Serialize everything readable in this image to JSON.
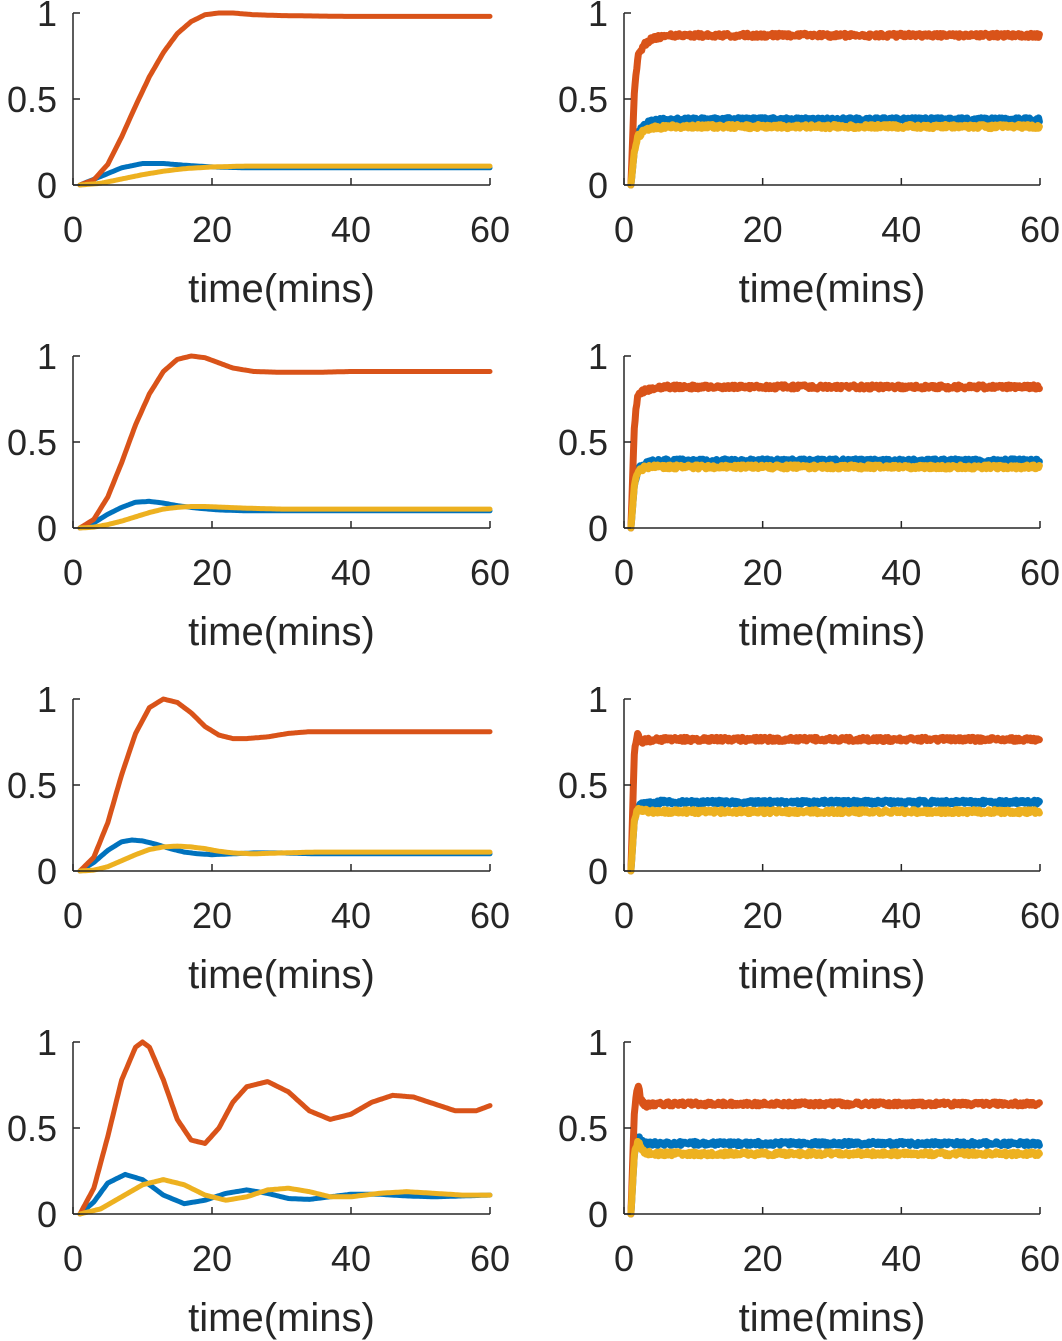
{
  "colors": {
    "series_a": "#0072BD",
    "series_b": "#D95319",
    "series_c": "#EDB120",
    "axis": "#262626"
  },
  "chart_data": [
    {
      "type": "line",
      "panel": "row1-left",
      "xlabel": "time(mins)",
      "ylabel": "",
      "xlim": [
        0,
        60
      ],
      "ylim": [
        0,
        1
      ],
      "xticks": [
        0,
        20,
        40,
        60
      ],
      "yticks": [
        0,
        0.5,
        1
      ],
      "yticklabels": [
        "0",
        "0.5",
        "1"
      ],
      "grid": false,
      "series": [
        {
          "color": "#0072BD",
          "noise": false,
          "x": [
            1,
            4,
            7,
            10,
            13,
            16,
            20,
            25,
            30,
            40,
            50,
            60
          ],
          "y": [
            0,
            0.05,
            0.1,
            0.125,
            0.125,
            0.115,
            0.105,
            0.1,
            0.1,
            0.1,
            0.1,
            0.1
          ]
        },
        {
          "color": "#D95319",
          "noise": false,
          "x": [
            1,
            3,
            5,
            7,
            9,
            11,
            13,
            15,
            17,
            19,
            21,
            23,
            26,
            30,
            40,
            50,
            60
          ],
          "y": [
            0,
            0.03,
            0.12,
            0.28,
            0.46,
            0.63,
            0.77,
            0.88,
            0.95,
            0.99,
            1.0,
            1.0,
            0.99,
            0.985,
            0.98,
            0.98,
            0.98
          ]
        },
        {
          "color": "#EDB120",
          "noise": false,
          "x": [
            1,
            4,
            7,
            10,
            13,
            16,
            20,
            25,
            30,
            40,
            50,
            60
          ],
          "y": [
            0,
            0.01,
            0.035,
            0.06,
            0.08,
            0.095,
            0.105,
            0.11,
            0.11,
            0.11,
            0.11,
            0.11
          ]
        }
      ]
    },
    {
      "type": "line",
      "panel": "row1-right",
      "xlabel": "time(mins)",
      "ylabel": "",
      "xlim": [
        0,
        60
      ],
      "ylim": [
        0,
        1
      ],
      "xticks": [
        0,
        20,
        40,
        60
      ],
      "yticks": [
        0,
        0.5,
        1
      ],
      "yticklabels": [
        "0",
        "0.5",
        "1"
      ],
      "grid": false,
      "series": [
        {
          "color": "#0072BD",
          "noise": true,
          "x": [
            1,
            1.5,
            2,
            3,
            4,
            5,
            7,
            10,
            20,
            30,
            40,
            50,
            60
          ],
          "y": [
            0,
            0.2,
            0.3,
            0.35,
            0.37,
            0.375,
            0.38,
            0.38,
            0.38,
            0.38,
            0.38,
            0.38,
            0.38
          ]
        },
        {
          "color": "#D95319",
          "noise": true,
          "x": [
            1,
            1.5,
            2,
            3,
            4,
            5,
            7,
            10,
            20,
            30,
            40,
            50,
            60
          ],
          "y": [
            0,
            0.55,
            0.75,
            0.82,
            0.85,
            0.86,
            0.87,
            0.87,
            0.87,
            0.87,
            0.87,
            0.87,
            0.87
          ]
        },
        {
          "color": "#EDB120",
          "noise": true,
          "x": [
            1,
            1.5,
            2,
            3,
            4,
            5,
            7,
            10,
            20,
            30,
            40,
            50,
            60
          ],
          "y": [
            0,
            0.2,
            0.28,
            0.32,
            0.33,
            0.335,
            0.34,
            0.34,
            0.34,
            0.34,
            0.34,
            0.34,
            0.34
          ]
        }
      ]
    },
    {
      "type": "line",
      "panel": "row2-left",
      "xlabel": "time(mins)",
      "ylabel": "",
      "xlim": [
        0,
        60
      ],
      "ylim": [
        0,
        1
      ],
      "xticks": [
        0,
        20,
        40,
        60
      ],
      "yticks": [
        0,
        0.5,
        1
      ],
      "yticklabels": [
        "0",
        "0.5",
        "1"
      ],
      "grid": false,
      "series": [
        {
          "color": "#0072BD",
          "noise": false,
          "x": [
            1,
            3,
            5,
            7,
            9,
            11,
            13,
            15,
            18,
            21,
            25,
            30,
            40,
            50,
            60
          ],
          "y": [
            0,
            0.03,
            0.08,
            0.12,
            0.15,
            0.155,
            0.145,
            0.13,
            0.115,
            0.105,
            0.1,
            0.1,
            0.1,
            0.1,
            0.1
          ]
        },
        {
          "color": "#D95319",
          "noise": false,
          "x": [
            1,
            3,
            5,
            7,
            9,
            11,
            13,
            15,
            17,
            19,
            21,
            23,
            26,
            30,
            35,
            40,
            50,
            60
          ],
          "y": [
            0,
            0.05,
            0.18,
            0.38,
            0.6,
            0.78,
            0.91,
            0.98,
            1.0,
            0.99,
            0.96,
            0.93,
            0.91,
            0.905,
            0.905,
            0.91,
            0.91,
            0.91
          ]
        },
        {
          "color": "#EDB120",
          "noise": false,
          "x": [
            1,
            3,
            5,
            7,
            9,
            11,
            13,
            15,
            17,
            19,
            22,
            25,
            30,
            40,
            50,
            60
          ],
          "y": [
            0,
            0.005,
            0.02,
            0.04,
            0.065,
            0.09,
            0.11,
            0.12,
            0.125,
            0.125,
            0.12,
            0.115,
            0.11,
            0.11,
            0.11,
            0.11
          ]
        }
      ]
    },
    {
      "type": "line",
      "panel": "row2-right",
      "xlabel": "time(mins)",
      "ylabel": "",
      "xlim": [
        0,
        60
      ],
      "ylim": [
        0,
        1
      ],
      "xticks": [
        0,
        20,
        40,
        60
      ],
      "yticks": [
        0,
        0.5,
        1
      ],
      "yticklabels": [
        "0",
        "0.5",
        "1"
      ],
      "grid": false,
      "series": [
        {
          "color": "#0072BD",
          "noise": true,
          "x": [
            1,
            1.5,
            2,
            3,
            4,
            5,
            7,
            10,
            20,
            30,
            40,
            50,
            60
          ],
          "y": [
            0,
            0.25,
            0.34,
            0.37,
            0.385,
            0.39,
            0.39,
            0.39,
            0.39,
            0.39,
            0.39,
            0.39,
            0.39
          ]
        },
        {
          "color": "#D95319",
          "noise": true,
          "x": [
            1,
            1.5,
            2,
            3,
            4,
            5,
            7,
            10,
            20,
            30,
            40,
            50,
            60
          ],
          "y": [
            0,
            0.6,
            0.78,
            0.8,
            0.81,
            0.82,
            0.82,
            0.82,
            0.82,
            0.82,
            0.82,
            0.82,
            0.82
          ]
        },
        {
          "color": "#EDB120",
          "noise": true,
          "x": [
            1,
            1.5,
            2,
            3,
            4,
            5,
            7,
            10,
            20,
            30,
            40,
            50,
            60
          ],
          "y": [
            0,
            0.25,
            0.33,
            0.35,
            0.355,
            0.355,
            0.355,
            0.355,
            0.355,
            0.355,
            0.355,
            0.355,
            0.355
          ]
        }
      ]
    },
    {
      "type": "line",
      "panel": "row3-left",
      "xlabel": "time(mins)",
      "ylabel": "",
      "xlim": [
        0,
        60
      ],
      "ylim": [
        0,
        1
      ],
      "xticks": [
        0,
        20,
        40,
        60
      ],
      "yticks": [
        0,
        0.5,
        1
      ],
      "yticklabels": [
        "0",
        "0.5",
        "1"
      ],
      "grid": false,
      "series": [
        {
          "color": "#0072BD",
          "noise": false,
          "x": [
            1,
            3,
            5,
            7,
            8.5,
            10,
            12,
            14,
            16,
            18,
            20,
            23,
            26,
            30,
            35,
            40,
            50,
            60
          ],
          "y": [
            0,
            0.05,
            0.12,
            0.17,
            0.18,
            0.175,
            0.155,
            0.13,
            0.11,
            0.1,
            0.095,
            0.1,
            0.105,
            0.105,
            0.1,
            0.1,
            0.1,
            0.1
          ]
        },
        {
          "color": "#D95319",
          "noise": false,
          "x": [
            1,
            3,
            5,
            7,
            9,
            11,
            13,
            15,
            17,
            19,
            21,
            23,
            25,
            28,
            31,
            34,
            37,
            40,
            45,
            50,
            60
          ],
          "y": [
            0,
            0.08,
            0.28,
            0.56,
            0.8,
            0.95,
            1.0,
            0.98,
            0.92,
            0.84,
            0.79,
            0.77,
            0.77,
            0.78,
            0.8,
            0.81,
            0.81,
            0.81,
            0.81,
            0.81,
            0.81
          ]
        },
        {
          "color": "#EDB120",
          "noise": false,
          "x": [
            1,
            3,
            5,
            7,
            9,
            11,
            13,
            15,
            17,
            19,
            21,
            23,
            26,
            30,
            35,
            40,
            50,
            60
          ],
          "y": [
            0,
            0.005,
            0.025,
            0.06,
            0.095,
            0.125,
            0.14,
            0.145,
            0.14,
            0.13,
            0.115,
            0.105,
            0.1,
            0.105,
            0.11,
            0.11,
            0.11,
            0.11
          ]
        }
      ]
    },
    {
      "type": "line",
      "panel": "row3-right",
      "xlabel": "time(mins)",
      "ylabel": "",
      "xlim": [
        0,
        60
      ],
      "ylim": [
        0,
        1
      ],
      "xticks": [
        0,
        20,
        40,
        60
      ],
      "yticks": [
        0,
        0.5,
        1
      ],
      "yticklabels": [
        "0",
        "0.5",
        "1"
      ],
      "grid": false,
      "series": [
        {
          "color": "#0072BD",
          "noise": true,
          "x": [
            1,
            1.5,
            2,
            3,
            4,
            5,
            7,
            10,
            20,
            30,
            40,
            50,
            60
          ],
          "y": [
            0,
            0.3,
            0.38,
            0.39,
            0.395,
            0.4,
            0.4,
            0.4,
            0.4,
            0.4,
            0.4,
            0.4,
            0.4
          ]
        },
        {
          "color": "#D95319",
          "noise": true,
          "x": [
            1,
            1.5,
            2,
            2.5,
            3,
            4,
            5,
            7,
            10,
            20,
            30,
            40,
            50,
            60
          ],
          "y": [
            0,
            0.7,
            0.8,
            0.75,
            0.76,
            0.76,
            0.765,
            0.765,
            0.765,
            0.765,
            0.765,
            0.765,
            0.765,
            0.765
          ]
        },
        {
          "color": "#EDB120",
          "noise": true,
          "x": [
            1,
            1.5,
            2,
            3,
            4,
            5,
            7,
            10,
            20,
            30,
            40,
            50,
            60
          ],
          "y": [
            0,
            0.3,
            0.36,
            0.35,
            0.345,
            0.345,
            0.345,
            0.345,
            0.345,
            0.345,
            0.345,
            0.345,
            0.345
          ]
        }
      ]
    },
    {
      "type": "line",
      "panel": "row4-left",
      "xlabel": "time(mins)",
      "ylabel": "",
      "xlim": [
        0,
        60
      ],
      "ylim": [
        0,
        1
      ],
      "xticks": [
        0,
        20,
        40,
        60
      ],
      "yticks": [
        0,
        0.5,
        1
      ],
      "yticklabels": [
        "0",
        "0.5",
        "1"
      ],
      "grid": false,
      "series": [
        {
          "color": "#0072BD",
          "noise": false,
          "x": [
            1,
            3,
            5,
            7.5,
            10,
            13,
            16,
            19,
            22,
            25,
            28,
            31,
            34,
            37,
            40,
            44,
            48,
            52,
            56,
            60
          ],
          "y": [
            0,
            0.07,
            0.18,
            0.23,
            0.2,
            0.11,
            0.06,
            0.08,
            0.12,
            0.14,
            0.12,
            0.09,
            0.085,
            0.1,
            0.115,
            0.115,
            0.105,
            0.1,
            0.105,
            0.11
          ]
        },
        {
          "color": "#D95319",
          "noise": false,
          "x": [
            1,
            3,
            5,
            7,
            9,
            10,
            11,
            13,
            15,
            17,
            19,
            21,
            23,
            25,
            28,
            31,
            34,
            37,
            40,
            43,
            46,
            49,
            52,
            55,
            58,
            60
          ],
          "y": [
            0,
            0.15,
            0.45,
            0.78,
            0.97,
            1.0,
            0.97,
            0.78,
            0.55,
            0.43,
            0.41,
            0.5,
            0.65,
            0.74,
            0.77,
            0.71,
            0.6,
            0.55,
            0.58,
            0.65,
            0.69,
            0.68,
            0.64,
            0.6,
            0.6,
            0.63
          ]
        },
        {
          "color": "#EDB120",
          "noise": false,
          "x": [
            1,
            4,
            7,
            10,
            13,
            16,
            19,
            22,
            25,
            28,
            31,
            34,
            37,
            40,
            44,
            48,
            52,
            56,
            60
          ],
          "y": [
            0,
            0.03,
            0.1,
            0.17,
            0.2,
            0.17,
            0.11,
            0.08,
            0.1,
            0.14,
            0.15,
            0.13,
            0.1,
            0.1,
            0.12,
            0.13,
            0.12,
            0.11,
            0.11
          ]
        }
      ]
    },
    {
      "type": "line",
      "panel": "row4-right",
      "xlabel": "time(mins)",
      "ylabel": "",
      "xlim": [
        0,
        60
      ],
      "ylim": [
        0,
        1
      ],
      "xticks": [
        0,
        20,
        40,
        60
      ],
      "yticks": [
        0,
        0.5,
        1
      ],
      "yticklabels": [
        "0",
        "0.5",
        "1"
      ],
      "grid": false,
      "series": [
        {
          "color": "#0072BD",
          "noise": true,
          "x": [
            1,
            1.5,
            2,
            2.5,
            3,
            4,
            5,
            7,
            10,
            20,
            30,
            40,
            50,
            60
          ],
          "y": [
            0,
            0.35,
            0.45,
            0.42,
            0.41,
            0.41,
            0.41,
            0.41,
            0.41,
            0.41,
            0.41,
            0.41,
            0.41,
            0.41
          ]
        },
        {
          "color": "#D95319",
          "noise": true,
          "x": [
            1,
            1.5,
            2,
            2.5,
            3,
            4,
            5,
            7,
            10,
            20,
            30,
            40,
            50,
            60
          ],
          "y": [
            0,
            0.6,
            0.75,
            0.66,
            0.63,
            0.64,
            0.64,
            0.64,
            0.64,
            0.64,
            0.64,
            0.64,
            0.64,
            0.64
          ]
        },
        {
          "color": "#EDB120",
          "noise": true,
          "x": [
            1,
            1.5,
            2,
            2.5,
            3,
            4,
            5,
            7,
            10,
            20,
            30,
            40,
            50,
            60
          ],
          "y": [
            0,
            0.35,
            0.42,
            0.38,
            0.36,
            0.35,
            0.35,
            0.35,
            0.35,
            0.35,
            0.35,
            0.35,
            0.35,
            0.35
          ]
        }
      ]
    }
  ]
}
